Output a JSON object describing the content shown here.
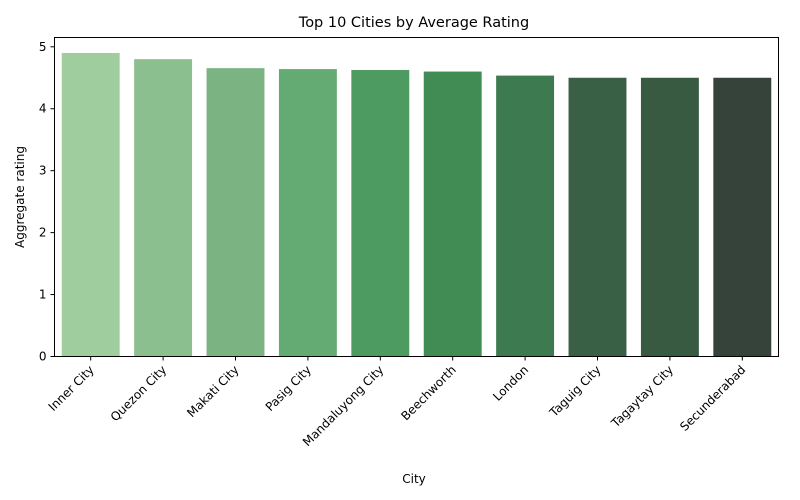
{
  "chart_data": {
    "type": "bar",
    "title": "Top 10 Cities by Average Rating",
    "xlabel": "City",
    "ylabel": "Aggregate rating",
    "categories": [
      "Inner City",
      "Quezon City",
      "Makati City",
      "Pasig City",
      "Mandaluyong City",
      "Beechworth",
      "London",
      "Taguig City",
      "Tagaytay City",
      "Secunderabad"
    ],
    "values": [
      4.9,
      4.8,
      4.655,
      4.64,
      4.625,
      4.6,
      4.535,
      4.5,
      4.5,
      4.5
    ],
    "ylim": [
      0,
      5.15
    ],
    "yticks": [
      "0",
      "1",
      "2",
      "3",
      "4",
      "5"
    ],
    "colors": [
      "#a0cd9e",
      "#8bbf8f",
      "#7bb482",
      "#64aa73",
      "#4e9b62",
      "#418c55",
      "#3e7a50",
      "#395f45",
      "#375a40",
      "#35433a"
    ],
    "grid": false,
    "legend": "none"
  }
}
